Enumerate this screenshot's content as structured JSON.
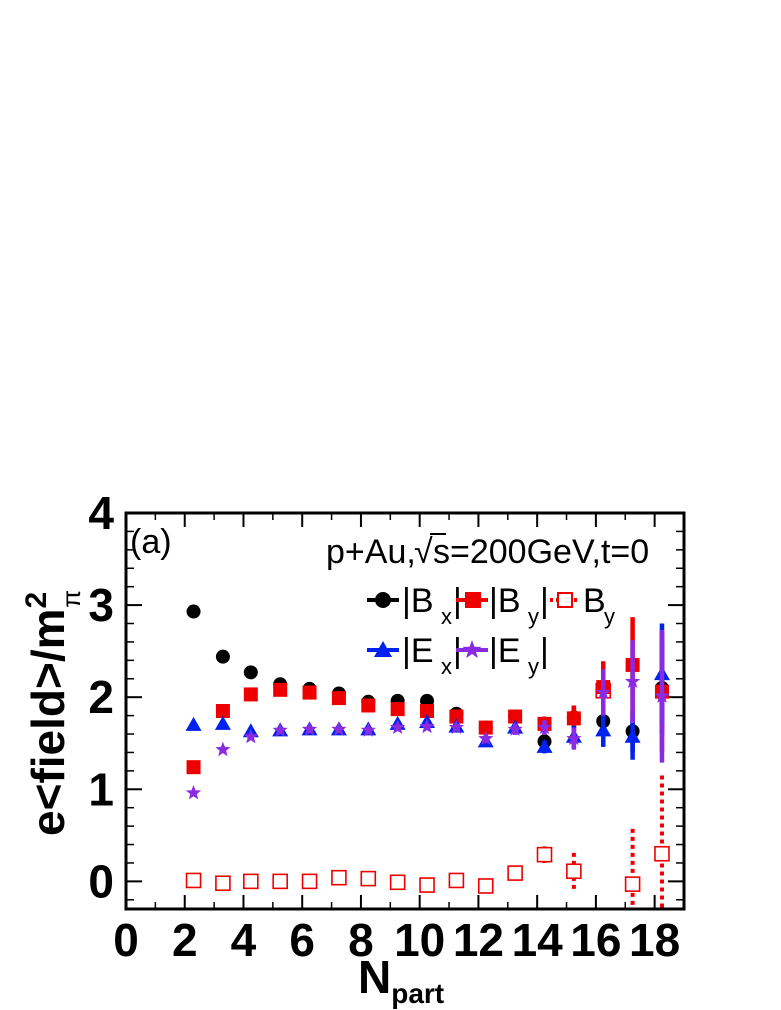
{
  "chart_data": {
    "type": "scatter",
    "panel_label": "(a)",
    "annotation": {
      "collision": "p+Au,",
      "sqrt_symbol": "√",
      "energy": "s=200GeV,t=0"
    },
    "ylabel": {
      "prefix": "e<field>/m",
      "superscript": "2",
      "subscript": "π"
    },
    "xlabel": {
      "main": "N",
      "subscript": "part"
    },
    "xlim": [
      0,
      19
    ],
    "ylim": [
      -0.3,
      4
    ],
    "x_ticks": [
      0,
      2,
      4,
      6,
      8,
      10,
      12,
      14,
      16,
      18
    ],
    "x_tick_labels": [
      "0",
      "2",
      "4",
      "6",
      "8",
      "10",
      "12",
      "14",
      "16",
      "18"
    ],
    "y_ticks": [
      0,
      1,
      2,
      3,
      4
    ],
    "y_tick_labels": [
      "0",
      "1",
      "2",
      "3",
      "4"
    ],
    "x": [
      2.3,
      3.3,
      4.25,
      5.25,
      6.25,
      7.25,
      8.25,
      9.25,
      10.25,
      11.25,
      12.25,
      13.25,
      14.25,
      15.25,
      16.25,
      17.25,
      18.25
    ],
    "series": [
      {
        "name": "Bx_abs",
        "legend_main": "|B",
        "legend_sub": "x",
        "legend_tail": "|",
        "color": "#000000",
        "marker": "circle",
        "line": "solid",
        "values": [
          2.93,
          2.44,
          2.27,
          2.14,
          2.09,
          2.04,
          1.95,
          1.96,
          1.96,
          1.82,
          1.67,
          1.79,
          1.52,
          1.78,
          1.74,
          1.63,
          2.1
        ],
        "errors": [
          0.01,
          0.01,
          0.01,
          0.01,
          0.01,
          0.01,
          0.02,
          0.02,
          0.02,
          0.03,
          0.04,
          0.05,
          0.08,
          0.12,
          0.18,
          0.22,
          0.5
        ]
      },
      {
        "name": "By_abs",
        "legend_main": "|B",
        "legend_sub": "y",
        "legend_tail": "|",
        "color": "#ee0000",
        "marker": "square",
        "line": "solid",
        "values": [
          1.24,
          1.85,
          2.03,
          2.08,
          2.05,
          1.99,
          1.91,
          1.87,
          1.85,
          1.79,
          1.67,
          1.79,
          1.71,
          1.77,
          2.11,
          2.35,
          2.06
        ],
        "errors": [
          0.02,
          0.02,
          0.02,
          0.02,
          0.02,
          0.02,
          0.03,
          0.03,
          0.03,
          0.04,
          0.05,
          0.06,
          0.08,
          0.14,
          0.28,
          0.52,
          0.65
        ]
      },
      {
        "name": "Ex_abs",
        "legend_main": "|E",
        "legend_sub": "x",
        "legend_tail": "|",
        "color": "#0022ee",
        "marker": "triangle",
        "line": "solid",
        "values": [
          1.7,
          1.71,
          1.63,
          1.64,
          1.65,
          1.65,
          1.65,
          1.71,
          1.73,
          1.68,
          1.52,
          1.67,
          1.46,
          1.57,
          1.64,
          1.57,
          2.25
        ],
        "errors": [
          0.01,
          0.01,
          0.01,
          0.01,
          0.02,
          0.02,
          0.02,
          0.03,
          0.03,
          0.04,
          0.04,
          0.05,
          0.07,
          0.12,
          0.18,
          0.25,
          0.55
        ]
      },
      {
        "name": "Ey_abs",
        "legend_main": "|E",
        "legend_sub": "y",
        "legend_tail": "|",
        "color": "#8a2be2",
        "marker": "star",
        "line": "solid",
        "values": [
          0.96,
          1.43,
          1.57,
          1.64,
          1.65,
          1.65,
          1.64,
          1.67,
          1.68,
          1.67,
          1.55,
          1.65,
          1.67,
          1.55,
          2.05,
          2.17,
          2.01
        ],
        "errors": [
          0.02,
          0.02,
          0.02,
          0.02,
          0.02,
          0.02,
          0.03,
          0.03,
          0.03,
          0.04,
          0.05,
          0.06,
          0.08,
          0.12,
          0.25,
          0.45,
          0.72
        ]
      },
      {
        "name": "By",
        "legend_main": "B",
        "legend_sub": "y",
        "legend_tail": "",
        "color": "#ee0000",
        "marker": "open-square",
        "line": "dotted",
        "values": [
          0.01,
          -0.02,
          0.0,
          0.0,
          0.0,
          0.04,
          0.03,
          -0.01,
          -0.04,
          0.01,
          -0.05,
          0.09,
          0.29,
          0.11,
          2.07,
          -0.03,
          0.3
        ],
        "errors": [
          0.01,
          0.01,
          0.01,
          0.02,
          0.02,
          0.02,
          0.03,
          0.03,
          0.03,
          0.04,
          0.05,
          0.08,
          0.09,
          0.2,
          0.3,
          0.6,
          0.85
        ]
      }
    ]
  }
}
